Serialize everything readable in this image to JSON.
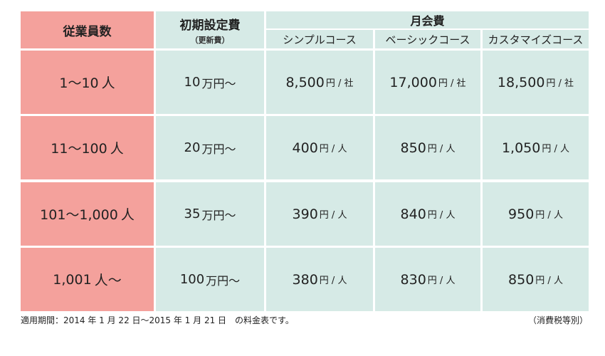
{
  "table": {
    "headers": {
      "employees": "従業員数",
      "initial_fee": "初期設定費",
      "initial_fee_sub": "（更新費）",
      "monthly_fee": "月会費",
      "courses": [
        "シンプルコース",
        "ベーシックコース",
        "カスタマイズコース"
      ]
    },
    "rows": [
      {
        "employees": "1〜10",
        "employees_unit": "人",
        "initial_amount": "10",
        "initial_unit": "万円〜",
        "prices": [
          {
            "amount": "8,500",
            "unit": "円 / 社"
          },
          {
            "amount": "17,000",
            "unit": "円 / 社"
          },
          {
            "amount": "18,500",
            "unit": "円 / 社"
          }
        ]
      },
      {
        "employees": "11〜100",
        "employees_unit": "人",
        "initial_amount": "20",
        "initial_unit": "万円〜",
        "prices": [
          {
            "amount": "400",
            "unit": "円 / 人"
          },
          {
            "amount": "850",
            "unit": "円 / 人"
          },
          {
            "amount": "1,050",
            "unit": "円 / 人"
          }
        ]
      },
      {
        "employees": "101〜1,000",
        "employees_unit": "人",
        "initial_amount": "35",
        "initial_unit": "万円〜",
        "prices": [
          {
            "amount": "390",
            "unit": "円 / 人"
          },
          {
            "amount": "840",
            "unit": "円 / 人"
          },
          {
            "amount": "950",
            "unit": "円 / 人"
          }
        ]
      },
      {
        "employees": "1,001",
        "employees_unit": "人〜",
        "initial_amount": "100",
        "initial_unit": "万円〜",
        "prices": [
          {
            "amount": "380",
            "unit": "円 / 人"
          },
          {
            "amount": "830",
            "unit": "円 / 人"
          },
          {
            "amount": "850",
            "unit": "円 / 人"
          }
        ]
      }
    ]
  },
  "footer": {
    "period_note": "適用期間：2014 年 1 月 22 日〜2015 年 1 月 21 日　の料金表です。",
    "tax_note": "（消費税等別）"
  },
  "colors": {
    "header_pink": "#f4a19c",
    "cell_mint": "#d6eae6"
  }
}
